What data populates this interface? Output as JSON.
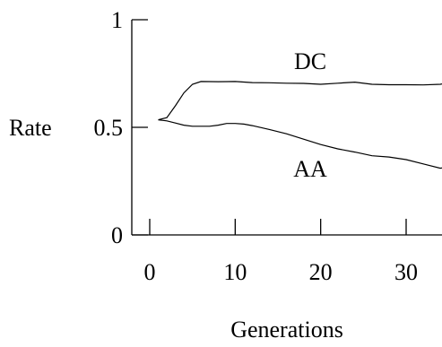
{
  "chart_data": {
    "type": "line",
    "title": "",
    "xlabel": "Generations",
    "ylabel": "Rate",
    "xlim": [
      0,
      37
    ],
    "ylim": [
      0,
      1
    ],
    "grid": false,
    "legend": "none",
    "x_ticks": [
      0,
      10,
      20,
      30
    ],
    "x_tick_labels": [
      "0",
      "10",
      "20",
      "30"
    ],
    "y_ticks": [
      0,
      0.5,
      1
    ],
    "y_tick_labels": [
      "0",
      "0.5",
      "1"
    ],
    "series": [
      {
        "name": "DC",
        "color": "#000000",
        "x": [
          1,
          2,
          3,
          4,
          5,
          6,
          8,
          10,
          12,
          14,
          16,
          18,
          20,
          22,
          24,
          26,
          28,
          30,
          32,
          34,
          36,
          37
        ],
        "y": [
          0.535,
          0.545,
          0.6,
          0.66,
          0.7,
          0.713,
          0.712,
          0.713,
          0.708,
          0.707,
          0.705,
          0.704,
          0.7,
          0.705,
          0.71,
          0.7,
          0.698,
          0.698,
          0.697,
          0.7,
          0.715,
          0.725
        ]
      },
      {
        "name": "AA",
        "color": "#000000",
        "x": [
          1,
          2,
          3,
          4,
          5,
          6,
          7,
          8,
          9,
          10,
          11,
          12,
          14,
          16,
          18,
          20,
          22,
          24,
          26,
          28,
          30,
          32,
          34,
          35,
          36,
          37
        ],
        "y": [
          0.535,
          0.53,
          0.52,
          0.51,
          0.505,
          0.505,
          0.505,
          0.51,
          0.518,
          0.518,
          0.515,
          0.508,
          0.49,
          0.47,
          0.445,
          0.42,
          0.4,
          0.385,
          0.368,
          0.362,
          0.35,
          0.33,
          0.31,
          0.318,
          0.315,
          0.315
        ]
      }
    ]
  }
}
